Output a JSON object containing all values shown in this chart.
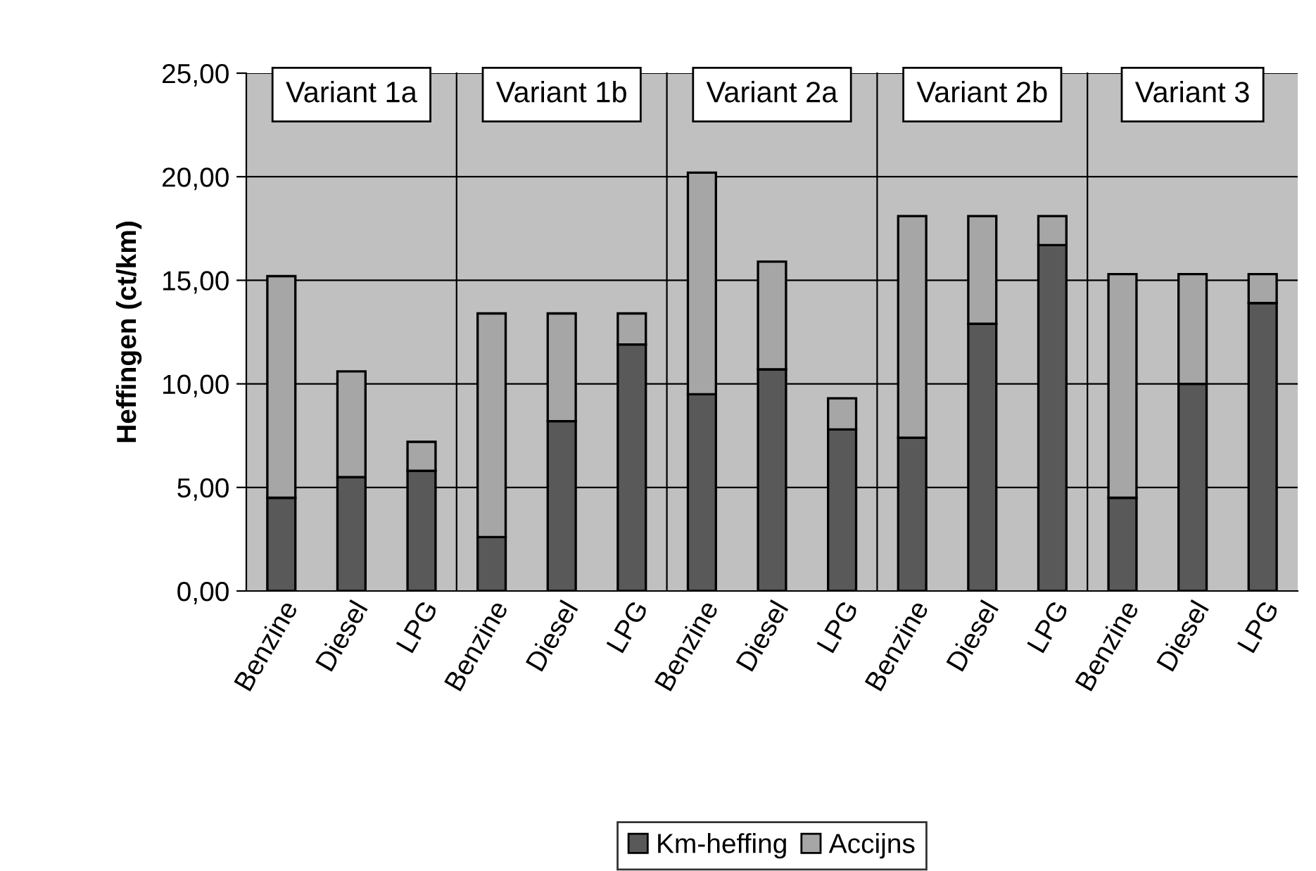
{
  "chart_data": [
    {
      "type": "bar",
      "stacked": true,
      "title": "Variant 1a",
      "ylabel": "Heffingen (ct/km)",
      "categories": [
        "Benzine",
        "Diesel",
        "LPG"
      ],
      "series": [
        {
          "color": "#595959",
          "values": [
            4.5,
            5.5,
            5.8
          ]
        },
        {
          "color": "#a6a6a6",
          "values": [
            10.7,
            5.1,
            1.4
          ]
        }
      ],
      "ylim": [
        0,
        25
      ],
      "yticks": [
        {
          "value": 0,
          "label": "0,00"
        },
        {
          "value": 5,
          "label": "5,00"
        },
        {
          "value": 10,
          "label": "10,00"
        },
        {
          "value": 15,
          "label": "15,00"
        },
        {
          "value": 20,
          "label": "20,00"
        },
        {
          "value": 25,
          "label": "25,00"
        }
      ],
      "grid": "y"
    },
    {
      "type": "bar",
      "stacked": true,
      "title": "Variant 1b",
      "categories": [
        "Benzine",
        "Diesel",
        "LPG"
      ],
      "series": [
        {
          "color": "#595959",
          "values": [
            2.6,
            8.2,
            11.9
          ]
        },
        {
          "color": "#a6a6a6",
          "values": [
            10.8,
            5.2,
            1.5
          ]
        }
      ],
      "ylim": [
        0,
        25
      ],
      "grid": "y",
      "tick_labels": "x"
    },
    {
      "type": "bar",
      "stacked": true,
      "title": "Variant 2a",
      "categories": [
        "Benzine",
        "Diesel",
        "LPG"
      ],
      "series": [
        {
          "name": "Km-heffing",
          "color": "#595959",
          "values": [
            9.5,
            10.7,
            7.8
          ]
        },
        {
          "name": "Accijns",
          "color": "#a6a6a6",
          "values": [
            10.7,
            5.2,
            1.5
          ]
        }
      ],
      "ylim": [
        0,
        25
      ],
      "grid": "y",
      "tick_labels": "x",
      "legend": "bottom"
    },
    {
      "type": "bar",
      "stacked": true,
      "title": "Variant 2b",
      "categories": [
        "Benzine",
        "Diesel",
        "LPG"
      ],
      "series": [
        {
          "color": "#595959",
          "values": [
            7.4,
            12.9,
            16.7
          ]
        },
        {
          "color": "#a6a6a6",
          "values": [
            10.7,
            5.2,
            1.4
          ]
        }
      ],
      "ylim": [
        0,
        25
      ],
      "grid": "y",
      "tick_labels": "x"
    },
    {
      "type": "bar",
      "stacked": true,
      "title": "Variant 3",
      "categories": [
        "Benzine",
        "Diesel",
        "LPG"
      ],
      "series": [
        {
          "color": "#595959",
          "values": [
            4.5,
            10.0,
            13.9
          ]
        },
        {
          "color": "#a6a6a6",
          "values": [
            10.8,
            5.3,
            1.4
          ]
        }
      ],
      "ylim": [
        0,
        25
      ],
      "grid": "y",
      "tick_labels": "x"
    }
  ]
}
